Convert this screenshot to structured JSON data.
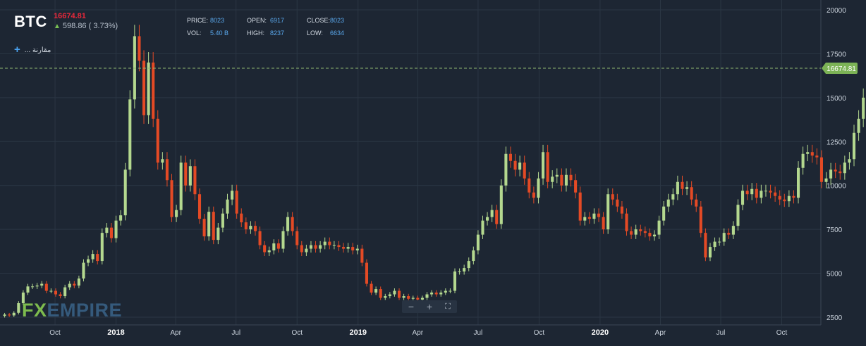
{
  "header": {
    "symbol": "BTC",
    "last_price": "16674.81",
    "change": "598.86 ( 3.73%)",
    "compare_label": "... مقارنة",
    "price_label": "PRICE:",
    "price_value": "8023",
    "vol_label": "VOL:",
    "vol_value": "5.40 B",
    "open_label": "OPEN:",
    "open_value": "6917",
    "high_label": "HIGH:",
    "high_value": "8237",
    "close_label": "CLOSE:",
    "close_value": "8023",
    "low_label": "LOW:",
    "low_value": "6634"
  },
  "zoom_controls": {
    "minus": "−",
    "plus": "+",
    "fullscreen": "⛶"
  },
  "logo": {
    "fx": "FX",
    "empire": "EMPIRE"
  },
  "colors": {
    "background": "#1d2633",
    "bull": "#b4d88f",
    "bear": "#e44a25",
    "grid": "#2b3644",
    "axis_text": "#c9d1db",
    "price_line": "#8fb870",
    "price_tag": "#7cb356"
  },
  "chart_data": {
    "type": "candlestick",
    "title": "",
    "ylim": [
      2500,
      20000
    ],
    "y_ticks": [
      2500,
      5000,
      7500,
      10000,
      12500,
      15000,
      17500,
      20000
    ],
    "y_tick_labels": [
      "2500",
      "5000",
      "7500",
      "10000",
      "12500",
      "15000",
      "17500",
      "20000"
    ],
    "x_tick_labels": [
      "Oct",
      "2018",
      "Apr",
      "Jul",
      "Oct",
      "2019",
      "Apr",
      "Jul",
      "Oct",
      "2020",
      "Apr",
      "Jul",
      "Oct"
    ],
    "x_tick_dates": [
      "2017-10-01",
      "2018-01-01",
      "2018-04-01",
      "2018-07-01",
      "2018-10-01",
      "2019-01-01",
      "2019-04-01",
      "2019-07-01",
      "2019-10-01",
      "2020-01-01",
      "2020-04-01",
      "2020-07-01",
      "2020-10-01"
    ],
    "x_range": [
      "2017-07-10",
      "2020-11-29"
    ],
    "last_price_line": 16674.81,
    "last_price_label": "16674.81",
    "series": [
      {
        "start_date": "2017-07-17",
        "interval": "1 week",
        "closes": [
          2650,
          2600,
          2750,
          3300,
          3900,
          4250,
          4250,
          4300,
          4400,
          4000,
          4000,
          3800,
          3700,
          4200,
          4400,
          4300,
          4700,
          5600,
          5800,
          6100,
          5700,
          7300,
          7600,
          7000,
          8000,
          8300,
          10900,
          14900,
          18500,
          17100,
          14000,
          17000,
          13800,
          11300,
          11500,
          10300,
          8200,
          8600,
          11300,
          10000,
          11100,
          9500,
          8100,
          7100,
          8500,
          6900,
          7600,
          8400,
          9200,
          9700,
          8400,
          7900,
          7500,
          7700,
          7400,
          6600,
          6200,
          6300,
          6700,
          6400,
          7400,
          8200,
          7400,
          6600,
          6200,
          6400,
          6600,
          6400,
          6600,
          6800,
          6600,
          6600,
          6500,
          6400,
          6500,
          6300,
          6400,
          5600,
          4400,
          3900,
          4100,
          3600,
          3700,
          3800,
          4000,
          3600,
          3700,
          3550,
          3600,
          3500,
          3600,
          3800,
          3900,
          3800,
          3900,
          4000,
          4000,
          5100,
          5100,
          5300,
          5700,
          6300,
          7200,
          8000,
          8200,
          8600,
          7800,
          10000,
          11800,
          11400,
          10900,
          11300,
          10400,
          9600,
          9300,
          10400,
          11900,
          10200,
          10500,
          10600,
          10000,
          10600,
          10300,
          9600,
          8000,
          8200,
          8100,
          8400,
          8200,
          7500,
          9500,
          9200,
          8800,
          8400,
          7400,
          7200,
          7500,
          7400,
          7300,
          7100,
          7200,
          8000,
          8800,
          9200,
          9500,
          10200,
          9800,
          9900,
          9200,
          8800,
          7300,
          5900,
          6500,
          6800,
          6800,
          7300,
          7200,
          7700,
          8900,
          9700,
          9500,
          9800,
          9300,
          9700,
          9700,
          9600,
          9400,
          9200,
          9100,
          9400,
          9300,
          11000,
          11800,
          11900,
          11700,
          11600,
          10200,
          10400,
          10900,
          10800,
          10700,
          11300,
          11500,
          13000,
          13800,
          15000,
          16000,
          16674.81
        ]
      }
    ]
  }
}
